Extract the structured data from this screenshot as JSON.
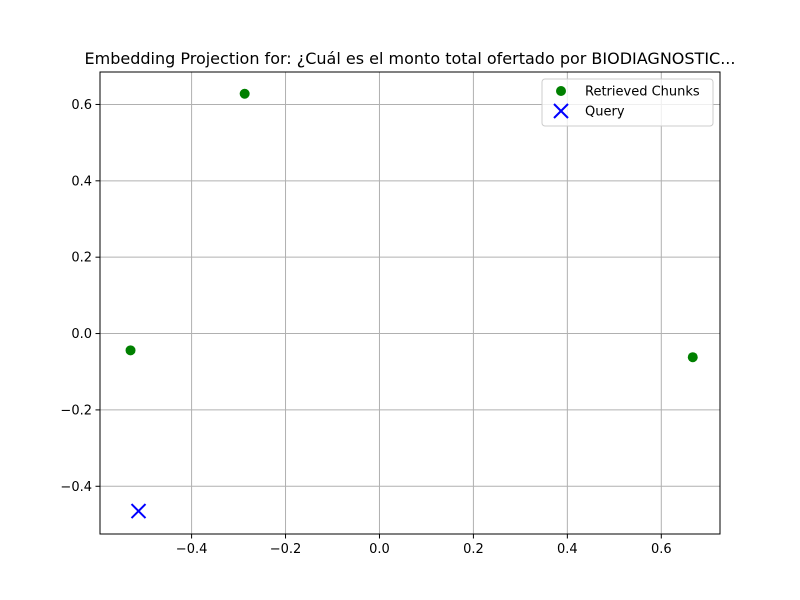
{
  "chart_data": {
    "type": "scatter",
    "title": "Embedding Projection for: ¿Cuál es el monto total ofertado por BIODIAGNOSTIC...",
    "xlabel": "",
    "ylabel": "",
    "xlim": [
      -0.595,
      0.725
    ],
    "ylim": [
      -0.525,
      0.685
    ],
    "x_ticks": [
      -0.4,
      -0.2,
      0.0,
      0.2,
      0.4,
      0.6
    ],
    "y_ticks": [
      -0.4,
      -0.2,
      0.0,
      0.2,
      0.4,
      0.6
    ],
    "x_tick_labels": [
      "−0.4",
      "−0.2",
      "0.0",
      "0.2",
      "0.4",
      "0.6"
    ],
    "y_tick_labels": [
      "−0.4",
      "−0.2",
      "0.0",
      "0.2",
      "0.4",
      "0.6"
    ],
    "grid": true,
    "legend_position": "upper-right",
    "series": [
      {
        "name": "Retrieved Chunks",
        "marker": "circle",
        "color": "#008000",
        "points": [
          {
            "x": -0.287,
            "y": 0.628
          },
          {
            "x": -0.53,
            "y": -0.044
          },
          {
            "x": 0.667,
            "y": -0.062
          }
        ]
      },
      {
        "name": "Query",
        "marker": "x",
        "color": "#0000ff",
        "points": [
          {
            "x": -0.513,
            "y": -0.465
          }
        ]
      }
    ]
  }
}
